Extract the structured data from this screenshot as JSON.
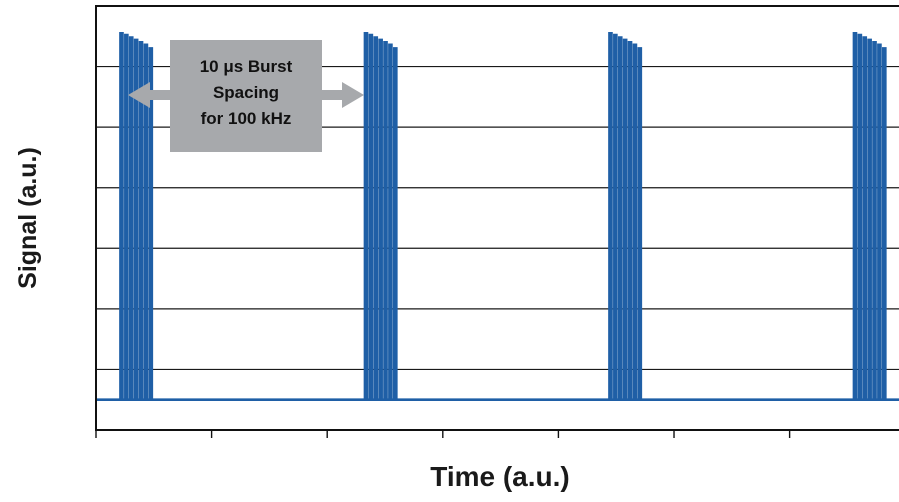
{
  "chart_data": {
    "type": "line",
    "title": "",
    "xlabel": "Time (a.u.)",
    "ylabel": "Signal (a.u.)",
    "xlim": [
      0,
      100
    ],
    "ylim": [
      0,
      7
    ],
    "grid": "horizontal",
    "legend": "none",
    "series": [
      {
        "name": "",
        "color": "#1f5fa6",
        "baseline": 0.5,
        "burst_starts": [
          3.0,
          33.0,
          63.0,
          93.0
        ],
        "pulses_per_burst": 7,
        "pulse_spacing": 0.6,
        "pulse_width": 0.25,
        "pulse_peaks": [
          6.55,
          6.52,
          6.48,
          6.44,
          6.4,
          6.36,
          6.3
        ]
      }
    ],
    "annotations": [
      {
        "text_lines": [
          "10 μs Burst",
          "Spacing",
          "for 100 kHz"
        ],
        "box_color": "#a7a9ac",
        "arrow": "double-headed, between first two bursts"
      }
    ]
  }
}
